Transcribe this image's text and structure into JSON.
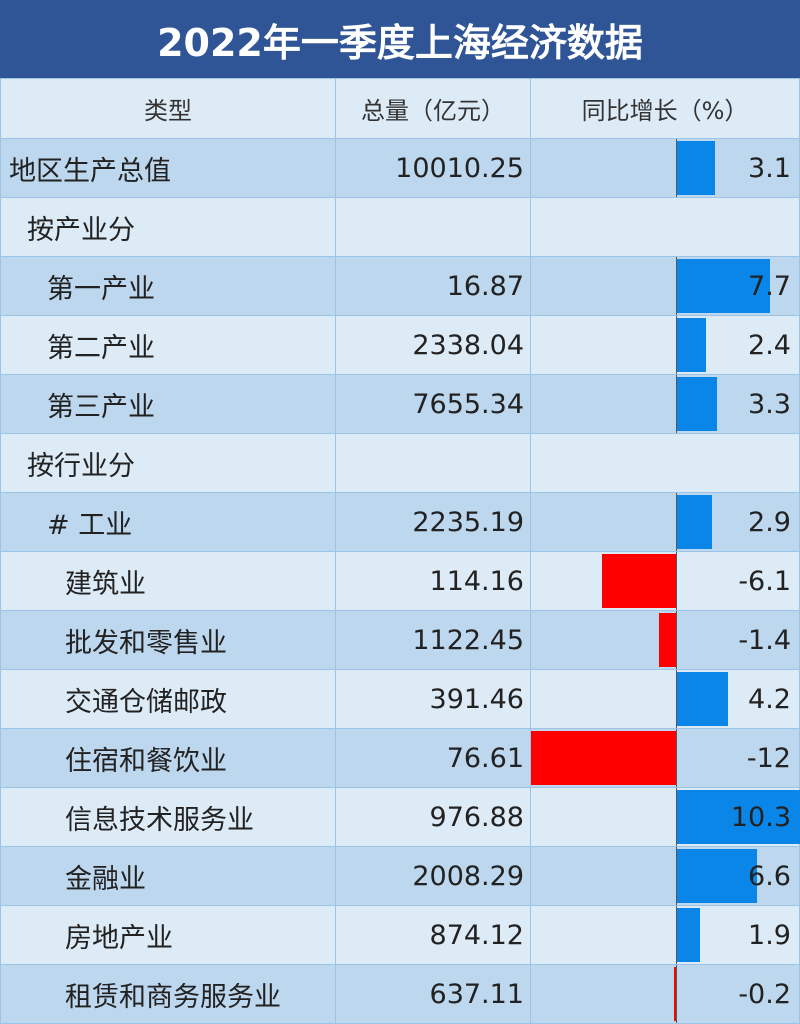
{
  "title": "2022年一季度上海经济数据",
  "colors": {
    "header_bg": "#2f5597",
    "positive_bar": "#0a86e8",
    "negative_bar": "#ff0000",
    "row_dark": "#bdd7ee",
    "row_light": "#ddebf7"
  },
  "chart_data": {
    "type": "table",
    "columns": [
      "类型",
      "总量（亿元）",
      "同比增长（%）"
    ],
    "rows": [
      {
        "label": "地区生产总值",
        "level": 0,
        "total": "10010.25",
        "growth": 3.1
      },
      {
        "label": "按产业分",
        "level": 1,
        "total": "",
        "growth": null
      },
      {
        "label": "第一产业",
        "level": 2,
        "total": "16.87",
        "growth": 7.7
      },
      {
        "label": "第二产业",
        "level": 2,
        "total": "2338.04",
        "growth": 2.4
      },
      {
        "label": "第三产业",
        "level": 2,
        "total": "7655.34",
        "growth": 3.3
      },
      {
        "label": "按行业分",
        "level": 1,
        "total": "",
        "growth": null
      },
      {
        "label": "# 工业",
        "level": 2,
        "total": "2235.19",
        "growth": 2.9
      },
      {
        "label": "建筑业",
        "level": 3,
        "total": "114.16",
        "growth": -6.1
      },
      {
        "label": "批发和零售业",
        "level": 3,
        "total": "1122.45",
        "growth": -1.4
      },
      {
        "label": "交通仓储邮政",
        "level": 3,
        "total": "391.46",
        "growth": 4.2
      },
      {
        "label": "住宿和餐饮业",
        "level": 3,
        "total": "76.61",
        "growth": -12
      },
      {
        "label": "信息技术服务业",
        "level": 3,
        "total": "976.88",
        "growth": 10.3
      },
      {
        "label": "金融业",
        "level": 3,
        "total": "2008.29",
        "growth": 6.6
      },
      {
        "label": "房地产业",
        "level": 3,
        "total": "874.12",
        "growth": 1.9
      },
      {
        "label": "租赁和商务服务业",
        "level": 3,
        "total": "637.11",
        "growth": -0.2
      }
    ]
  }
}
